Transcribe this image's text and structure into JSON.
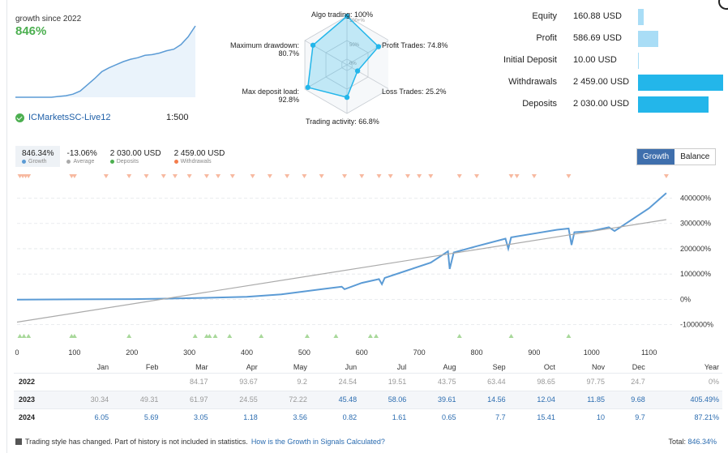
{
  "summary": {
    "growth_label": "growth since 2022",
    "growth_value": "846%",
    "account_name": "ICMarketsSC-Live12",
    "leverage": "1:500"
  },
  "radar": {
    "labels": {
      "algo": "Algo trading: 100%",
      "profit": "Profit Trades: 74.8%",
      "loss": "Loss Trades: 25.2%",
      "activity": "Trading activity: 66.8%",
      "deposit_load_1": "Max deposit load:",
      "deposit_load_2": "92.8%",
      "drawdown_1": "Maximum drawdown:",
      "drawdown_2": "80.7%"
    },
    "rings": {
      "r100": "100+%",
      "r50": "50%",
      "r0": "0%"
    },
    "values": [
      100,
      74.8,
      25.2,
      66.8,
      92.8,
      80.7
    ]
  },
  "stats": [
    {
      "name": "Equity",
      "value": "160.88 USD",
      "bar_fraction": 0.07,
      "bar_color": "#a9ddf6"
    },
    {
      "name": "Profit",
      "value": "586.69 USD",
      "bar_fraction": 0.24,
      "bar_color": "#a9ddf6"
    },
    {
      "name": "Initial Deposit",
      "value": "10.00 USD",
      "bar_fraction": 0.005,
      "bar_color": "#a9ddf6"
    },
    {
      "name": "Withdrawals",
      "value": "2 459.00 USD",
      "bar_fraction": 1.0,
      "bar_color": "#23b6ea"
    },
    {
      "name": "Deposits",
      "value": "2 030.00 USD",
      "bar_fraction": 0.83,
      "bar_color": "#23b6ea"
    }
  ],
  "legend": [
    {
      "value": "846.34%",
      "label": "Growth",
      "color": "#5b9bd5"
    },
    {
      "value": "-13.06%",
      "label": "Average",
      "color": "#aaaaaa"
    },
    {
      "value": "2 030.00 USD",
      "label": "Deposits",
      "color": "#4caf50"
    },
    {
      "value": "2 459.00 USD",
      "label": "Withdrawals",
      "color": "#f47c4c"
    }
  ],
  "toggle": {
    "growth": "Growth",
    "balance": "Balance"
  },
  "chart_data": {
    "type": "line",
    "x_ticks": [
      "0",
      "100",
      "200",
      "300",
      "400",
      "500",
      "600",
      "700",
      "800",
      "900",
      "1000",
      "1100"
    ],
    "y_ticks": [
      "400000%",
      "300000%",
      "200000%",
      "100000%",
      "0%",
      "-100000%"
    ],
    "xlim": [
      0,
      1140
    ],
    "ylim": [
      -130000,
      440000
    ],
    "series": [
      {
        "color": "#5b9bd5",
        "x": [
          0,
          100,
          200,
          260,
          330,
          400,
          460,
          530,
          565,
          570,
          600,
          630,
          635,
          640,
          680,
          720,
          740,
          750,
          753,
          760,
          800,
          850,
          855,
          860,
          900,
          940,
          960,
          965,
          970,
          1000,
          1030,
          1040,
          1060,
          1100,
          1130
        ],
        "y": [
          -1000,
          0,
          1000,
          3000,
          6000,
          10000,
          20000,
          40000,
          50000,
          40000,
          65000,
          80000,
          60000,
          85000,
          115000,
          145000,
          175000,
          190000,
          120000,
          185000,
          210000,
          240000,
          200000,
          245000,
          260000,
          275000,
          280000,
          215000,
          265000,
          270000,
          285000,
          270000,
          300000,
          360000,
          420000
        ]
      },
      {
        "color": "#aaaaaa",
        "x": [
          0,
          1130
        ],
        "y": [
          -90000,
          315000
        ]
      }
    ],
    "deposit_markers_x": [
      5,
      12,
      20,
      95,
      100,
      195,
      310,
      330,
      335,
      345,
      370,
      425,
      505,
      555,
      615,
      625,
      770,
      860,
      960
    ],
    "withdrawal_markers_x": [
      5,
      10,
      15,
      20,
      95,
      100,
      155,
      195,
      225,
      255,
      275,
      300,
      330,
      350,
      375,
      410,
      440,
      470,
      500,
      530,
      570,
      600,
      630,
      650,
      680,
      700,
      720,
      770,
      800,
      860,
      870,
      900,
      960,
      1130
    ]
  },
  "yearly": {
    "headers": [
      "Jan",
      "Feb",
      "Mar",
      "Apr",
      "May",
      "Jun",
      "Jul",
      "Aug",
      "Sep",
      "Oct",
      "Nov",
      "Dec",
      "Year"
    ],
    "rows": [
      {
        "year": "2022",
        "cells": [
          "",
          "",
          "84.17",
          "93.67",
          "9.2",
          "24.54",
          "19.51",
          "43.75",
          "63.44",
          "98.65",
          "97.75",
          "24.7",
          "0%"
        ],
        "styles": [
          "",
          "",
          "neg",
          "neg",
          "neg",
          "neg",
          "neg",
          "neg",
          "neg",
          "neg",
          "neg",
          "neg",
          "neg"
        ]
      },
      {
        "year": "2023",
        "cells": [
          "30.34",
          "49.31",
          "61.97",
          "24.55",
          "72.22",
          "45.48",
          "58.06",
          "39.61",
          "14.56",
          "12.04",
          "11.85",
          "9.68",
          "405.49%"
        ],
        "styles": [
          "neg",
          "neg",
          "neg",
          "neg",
          "neg",
          "pos",
          "pos",
          "pos",
          "pos",
          "pos",
          "pos",
          "pos",
          "pos"
        ]
      },
      {
        "year": "2024",
        "cells": [
          "6.05",
          "5.69",
          "3.05",
          "1.18",
          "3.56",
          "0.82",
          "1.61",
          "0.65",
          "7.7",
          "15.41",
          "10",
          "9.7",
          "87.21%"
        ],
        "styles": [
          "pos",
          "pos",
          "pos",
          "pos",
          "pos",
          "pos",
          "pos",
          "pos",
          "pos",
          "pos",
          "pos",
          "pos",
          "pos"
        ]
      }
    ]
  },
  "footer": {
    "note": "Trading style has changed. Part of history is not included in statistics.",
    "link": "How is the Growth in Signals Calculated?",
    "total_label": "Total:",
    "total_value": "846.34%"
  },
  "mini_chart": {
    "values": [
      0,
      0,
      0,
      0,
      0,
      0,
      1,
      2,
      4,
      8,
      16,
      24,
      33,
      38,
      42,
      46,
      49,
      51,
      54,
      55,
      57,
      60,
      62,
      68,
      78,
      92
    ]
  }
}
